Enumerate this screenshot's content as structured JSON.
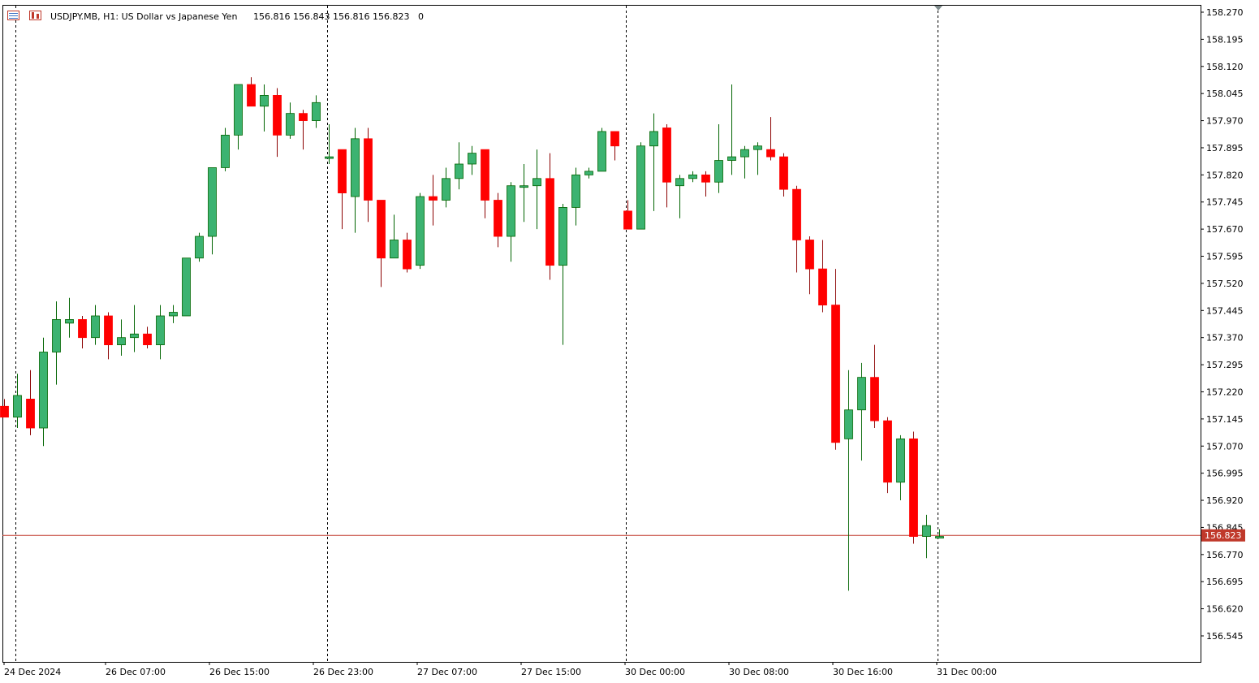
{
  "window": {
    "symbol_info": "USDJPY.MB, H1:  US Dollar vs Japanese Yen",
    "ohlc_text": "156.816 156.843 156.816 156.823",
    "volume_text": "0",
    "icons": [
      "chart-window-icon",
      "chart-mode-icon"
    ]
  },
  "colors": {
    "bull": "#3CB371",
    "bear": "#FF0000",
    "wick_bull": "#006400",
    "wick_bear": "#8B0000",
    "price_line": "#C0392B",
    "grid": "#000000",
    "frame": "#000000"
  },
  "chart_data": {
    "type": "candlestick",
    "title": "USDJPY.MB, H1",
    "ylim": [
      156.47,
      158.29
    ],
    "y_ticks": [
      "158.270",
      "158.195",
      "158.120",
      "158.045",
      "157.970",
      "157.895",
      "157.820",
      "157.745",
      "157.670",
      "157.595",
      "157.520",
      "157.445",
      "157.370",
      "157.295",
      "157.220",
      "157.145",
      "157.070",
      "156.995",
      "156.920",
      "156.845",
      "156.770",
      "156.695",
      "156.620",
      "156.545"
    ],
    "x_ticks": [
      "24 Dec 2024",
      "26 Dec 07:00",
      "26 Dec 15:00",
      "26 Dec 23:00",
      "27 Dec 07:00",
      "27 Dec 15:00",
      "30 Dec 00:00",
      "30 Dec 08:00",
      "30 Dec 16:00",
      "31 Dec 00:00"
    ],
    "day_separators": [
      "24 Dec",
      "26 Dec",
      "27 Dec",
      "30 Dec",
      "31 Dec"
    ],
    "current_price": "156.823",
    "candles": [
      {
        "o": 157.18,
        "h": 157.2,
        "l": 157.15,
        "c": 157.15
      },
      {
        "o": 157.15,
        "h": 157.27,
        "l": 157.12,
        "c": 157.21
      },
      {
        "o": 157.2,
        "h": 157.28,
        "l": 157.1,
        "c": 157.12
      },
      {
        "o": 157.12,
        "h": 157.37,
        "l": 157.07,
        "c": 157.33
      },
      {
        "o": 157.33,
        "h": 157.47,
        "l": 157.24,
        "c": 157.42
      },
      {
        "o": 157.41,
        "h": 157.48,
        "l": 157.37,
        "c": 157.42
      },
      {
        "o": 157.42,
        "h": 157.43,
        "l": 157.34,
        "c": 157.37
      },
      {
        "o": 157.37,
        "h": 157.46,
        "l": 157.35,
        "c": 157.43
      },
      {
        "o": 157.43,
        "h": 157.44,
        "l": 157.31,
        "c": 157.35
      },
      {
        "o": 157.35,
        "h": 157.42,
        "l": 157.32,
        "c": 157.37
      },
      {
        "o": 157.37,
        "h": 157.46,
        "l": 157.33,
        "c": 157.38
      },
      {
        "o": 157.38,
        "h": 157.4,
        "l": 157.34,
        "c": 157.35
      },
      {
        "o": 157.35,
        "h": 157.46,
        "l": 157.31,
        "c": 157.43
      },
      {
        "o": 157.43,
        "h": 157.46,
        "l": 157.41,
        "c": 157.44
      },
      {
        "o": 157.43,
        "h": 157.59,
        "l": 157.43,
        "c": 157.59
      },
      {
        "o": 157.59,
        "h": 157.66,
        "l": 157.58,
        "c": 157.65
      },
      {
        "o": 157.65,
        "h": 157.84,
        "l": 157.6,
        "c": 157.84
      },
      {
        "o": 157.84,
        "h": 157.95,
        "l": 157.83,
        "c": 157.93
      },
      {
        "o": 157.93,
        "h": 158.07,
        "l": 157.89,
        "c": 158.07
      },
      {
        "o": 158.07,
        "h": 158.09,
        "l": 158.01,
        "c": 158.01
      },
      {
        "o": 158.01,
        "h": 158.07,
        "l": 157.94,
        "c": 158.04
      },
      {
        "o": 158.04,
        "h": 158.06,
        "l": 157.87,
        "c": 157.93
      },
      {
        "o": 157.93,
        "h": 158.02,
        "l": 157.92,
        "c": 157.99
      },
      {
        "o": 157.99,
        "h": 158.0,
        "l": 157.89,
        "c": 157.97
      },
      {
        "o": 157.97,
        "h": 158.04,
        "l": 157.95,
        "c": 158.02
      },
      {
        "o": 157.87,
        "h": 157.96,
        "l": 157.85,
        "c": 157.87
      },
      {
        "o": 157.89,
        "h": 157.89,
        "l": 157.67,
        "c": 157.77
      },
      {
        "o": 157.76,
        "h": 157.95,
        "l": 157.66,
        "c": 157.92
      },
      {
        "o": 157.92,
        "h": 157.95,
        "l": 157.69,
        "c": 157.75
      },
      {
        "o": 157.75,
        "h": 157.75,
        "l": 157.51,
        "c": 157.59
      },
      {
        "o": 157.59,
        "h": 157.71,
        "l": 157.59,
        "c": 157.64
      },
      {
        "o": 157.64,
        "h": 157.66,
        "l": 157.55,
        "c": 157.56
      },
      {
        "o": 157.57,
        "h": 157.77,
        "l": 157.56,
        "c": 157.76
      },
      {
        "o": 157.76,
        "h": 157.82,
        "l": 157.68,
        "c": 157.75
      },
      {
        "o": 157.75,
        "h": 157.84,
        "l": 157.73,
        "c": 157.81
      },
      {
        "o": 157.81,
        "h": 157.91,
        "l": 157.78,
        "c": 157.85
      },
      {
        "o": 157.85,
        "h": 157.9,
        "l": 157.82,
        "c": 157.88
      },
      {
        "o": 157.89,
        "h": 157.89,
        "l": 157.7,
        "c": 157.75
      },
      {
        "o": 157.75,
        "h": 157.77,
        "l": 157.62,
        "c": 157.65
      },
      {
        "o": 157.65,
        "h": 157.8,
        "l": 157.58,
        "c": 157.79
      },
      {
        "o": 157.79,
        "h": 157.85,
        "l": 157.69,
        "c": 157.79
      },
      {
        "o": 157.79,
        "h": 157.89,
        "l": 157.67,
        "c": 157.81
      },
      {
        "o": 157.81,
        "h": 157.88,
        "l": 157.53,
        "c": 157.57
      },
      {
        "o": 157.57,
        "h": 157.74,
        "l": 157.35,
        "c": 157.73
      },
      {
        "o": 157.73,
        "h": 157.84,
        "l": 157.68,
        "c": 157.82
      },
      {
        "o": 157.82,
        "h": 157.84,
        "l": 157.81,
        "c": 157.83
      },
      {
        "o": 157.83,
        "h": 157.95,
        "l": 157.83,
        "c": 157.94
      },
      {
        "o": 157.94,
        "h": 157.94,
        "l": 157.86,
        "c": 157.9
      },
      {
        "o": 157.72,
        "h": 157.75,
        "l": 157.67,
        "c": 157.67
      },
      {
        "o": 157.67,
        "h": 157.91,
        "l": 157.67,
        "c": 157.9
      },
      {
        "o": 157.9,
        "h": 157.99,
        "l": 157.72,
        "c": 157.94
      },
      {
        "o": 157.95,
        "h": 157.96,
        "l": 157.73,
        "c": 157.8
      },
      {
        "o": 157.79,
        "h": 157.82,
        "l": 157.7,
        "c": 157.81
      },
      {
        "o": 157.81,
        "h": 157.83,
        "l": 157.8,
        "c": 157.82
      },
      {
        "o": 157.82,
        "h": 157.83,
        "l": 157.76,
        "c": 157.8
      },
      {
        "o": 157.8,
        "h": 157.96,
        "l": 157.77,
        "c": 157.86
      },
      {
        "o": 157.86,
        "h": 158.07,
        "l": 157.82,
        "c": 157.87
      },
      {
        "o": 157.87,
        "h": 157.9,
        "l": 157.81,
        "c": 157.89
      },
      {
        "o": 157.89,
        "h": 157.91,
        "l": 157.82,
        "c": 157.9
      },
      {
        "o": 157.89,
        "h": 157.98,
        "l": 157.86,
        "c": 157.87
      },
      {
        "o": 157.87,
        "h": 157.88,
        "l": 157.76,
        "c": 157.78
      },
      {
        "o": 157.78,
        "h": 157.79,
        "l": 157.55,
        "c": 157.64
      },
      {
        "o": 157.64,
        "h": 157.65,
        "l": 157.49,
        "c": 157.56
      },
      {
        "o": 157.56,
        "h": 157.64,
        "l": 157.44,
        "c": 157.46
      },
      {
        "o": 157.46,
        "h": 157.56,
        "l": 157.06,
        "c": 157.08
      },
      {
        "o": 157.09,
        "h": 157.28,
        "l": 156.67,
        "c": 157.17
      },
      {
        "o": 157.17,
        "h": 157.3,
        "l": 157.03,
        "c": 157.26
      },
      {
        "o": 157.26,
        "h": 157.35,
        "l": 157.12,
        "c": 157.14
      },
      {
        "o": 157.14,
        "h": 157.15,
        "l": 156.94,
        "c": 156.97
      },
      {
        "o": 156.97,
        "h": 157.1,
        "l": 156.92,
        "c": 157.09
      },
      {
        "o": 157.09,
        "h": 157.11,
        "l": 156.8,
        "c": 156.82
      },
      {
        "o": 156.82,
        "h": 156.88,
        "l": 156.76,
        "c": 156.85
      },
      {
        "o": 156.82,
        "h": 156.84,
        "l": 156.82,
        "c": 156.82
      }
    ]
  }
}
